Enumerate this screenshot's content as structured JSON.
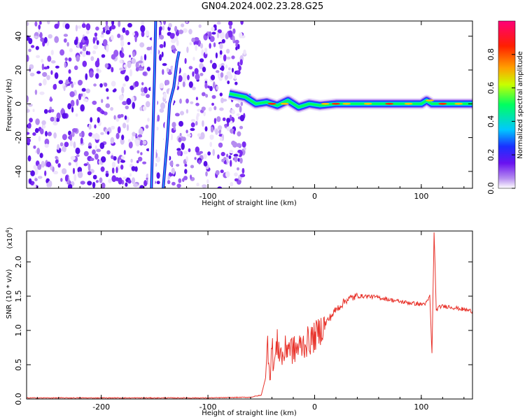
{
  "title": "GN04.2024.002.23.28.G25",
  "colors": {
    "snr_line": "#e8342c",
    "noise": "#7b2cf2",
    "background": "#ffffff"
  },
  "chart_data": [
    {
      "type": "heatmap",
      "title": "GN04.2024.002.23.28.G25",
      "xlabel": "Height of straight line (km)",
      "ylabel": "Frequency (Hz)",
      "xlim": [
        -270,
        148
      ],
      "ylim": [
        -50,
        49
      ],
      "x_ticks": [
        -200,
        -100,
        0,
        100
      ],
      "y_ticks": [
        -40,
        -20,
        0,
        20,
        40
      ],
      "colorbar": {
        "label": "Normalized spectral amplitude",
        "range": [
          0,
          1
        ],
        "ticks": [
          "0.0",
          "0.2",
          "0.4",
          "0.6",
          "0.8"
        ],
        "colormap": "rainbow (white-violet-blue-cyan-green-yellow-orange-red-magenta)"
      },
      "noise_region_x": [
        -270,
        -65
      ],
      "tracks": [
        {
          "x": [
            -153,
            -150,
            -149
          ],
          "y": [
            -50,
            20,
            49
          ]
        },
        {
          "x": [
            -142,
            -138,
            -136,
            -132,
            -129,
            -127
          ],
          "y": [
            -50,
            -20,
            0,
            10,
            25,
            31
          ]
        }
      ],
      "signal_band": {
        "x": [
          -80,
          -65,
          -55,
          -45,
          -35,
          -25,
          -15,
          -5,
          5,
          20,
          40,
          60,
          80,
          100,
          105,
          110,
          125,
          148
        ],
        "y": [
          6,
          4,
          0,
          1,
          -1,
          2,
          -2,
          0,
          -1,
          0,
          0,
          0,
          0,
          0,
          2,
          0,
          0,
          0
        ]
      }
    },
    {
      "type": "line",
      "xlabel": "Height of straight line (km)",
      "ylabel": "SNR (10 * v/v)",
      "ylabel_multiplier": "(x10^4)",
      "xlim": [
        -270,
        148
      ],
      "ylim": [
        0,
        2.45
      ],
      "x_ticks": [
        -200,
        -100,
        0,
        100
      ],
      "y_ticks": [
        "0.0",
        "0.5",
        "1.0",
        "1.5",
        "2.0"
      ],
      "series": [
        {
          "x": [
            -270,
            -200,
            -100,
            -60,
            -50,
            -46,
            -44,
            -42,
            -40,
            -38,
            -35,
            -30,
            -25,
            -20,
            -15,
            -10,
            0,
            10,
            20,
            30,
            40,
            50,
            60,
            70,
            80,
            90,
            100,
            105,
            108,
            110,
            112,
            114,
            118,
            125,
            135,
            148
          ],
          "y": [
            0.01,
            0.01,
            0.01,
            0.02,
            0.05,
            0.3,
            0.85,
            0.4,
            0.75,
            0.5,
            0.8,
            0.6,
            0.8,
            0.7,
            0.75,
            0.8,
            0.9,
            1.1,
            1.3,
            1.45,
            1.5,
            1.5,
            1.48,
            1.45,
            1.42,
            1.4,
            1.38,
            1.4,
            1.5,
            0.65,
            2.45,
            1.3,
            1.35,
            1.35,
            1.32,
            1.28
          ]
        }
      ]
    }
  ]
}
